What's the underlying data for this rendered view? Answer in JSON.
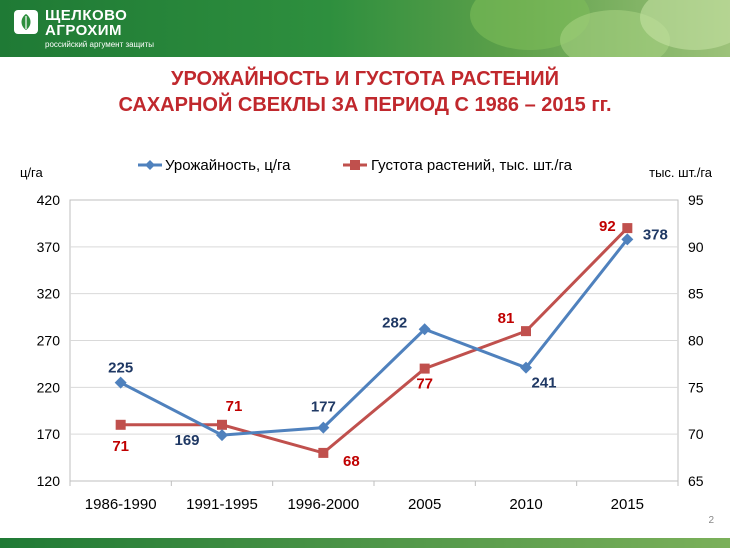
{
  "header": {
    "logo_line1": "ЩЕЛКОВО",
    "logo_line2": "АГРОХИМ",
    "logo_line3": "российский аргумент защиты"
  },
  "title_line1": "УРОЖАЙНОСТЬ И ГУСТОТА РАСТЕНИЙ",
  "title_line2": "САХАРНОЙ СВЕКЛЫ ЗА ПЕРИОД С 1986 – 2015 гг.",
  "page_number": "2",
  "colors": {
    "series_yield": "#4f81bd",
    "series_density": "#c0504d",
    "label_yield": "#1f3864",
    "label_density": "#c00000",
    "title": "#c0282d"
  },
  "chart_data": {
    "type": "line",
    "categories": [
      "1986-1990",
      "1991-1995",
      "1996-2000",
      "2005",
      "2010",
      "2015"
    ],
    "series": [
      {
        "name": "Урожайность, ц/га",
        "axis": "left",
        "values": [
          225,
          169,
          177,
          282,
          241,
          378
        ],
        "labels": [
          "225",
          "169",
          "177",
          "282",
          "241",
          "378"
        ]
      },
      {
        "name": "Густота растений, тыс. шт./га",
        "axis": "right",
        "values": [
          71,
          71,
          68,
          77,
          81,
          92
        ],
        "labels": [
          "71",
          "71",
          "68",
          "77",
          "81",
          "92"
        ]
      }
    ],
    "y_left": {
      "label": "ц/га",
      "min": 120,
      "max": 420,
      "ticks": [
        "420",
        "370",
        "320",
        "270",
        "220",
        "170",
        "120"
      ]
    },
    "y_right": {
      "label": "тыс. шт./га",
      "min": 65,
      "max": 95,
      "ticks": [
        "95",
        "90",
        "85",
        "80",
        "75",
        "70",
        "65"
      ]
    },
    "grid": true,
    "legend": "top"
  }
}
